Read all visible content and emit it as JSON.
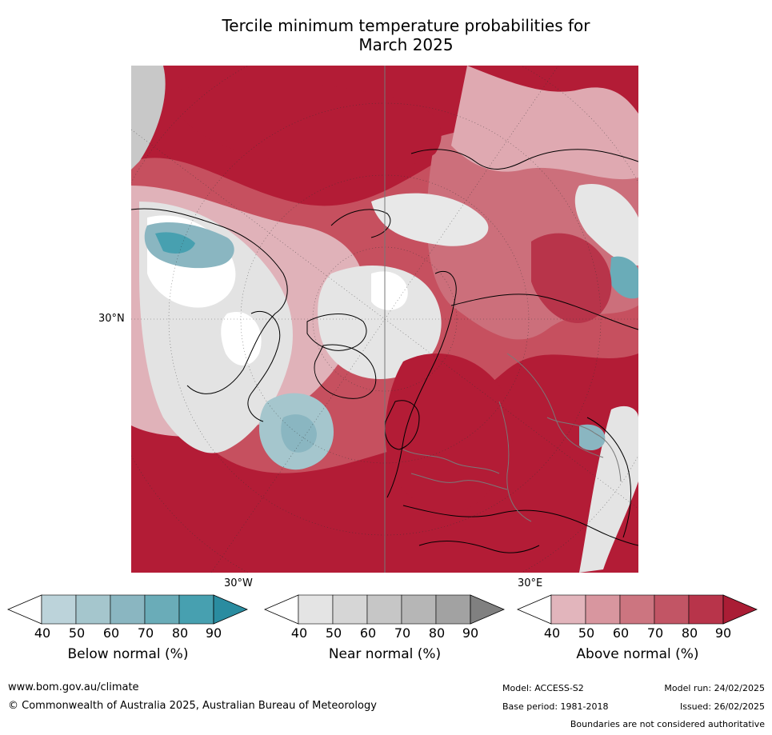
{
  "title_line1": "Tercile minimum temperature probabilities for",
  "title_line2": "March 2025",
  "map": {
    "lat_label": "30°N",
    "lon_label_left": "30°W",
    "lon_label_right": "30°E"
  },
  "colorbars": [
    {
      "label": "Below normal (%)",
      "ticks": [
        "40",
        "50",
        "60",
        "70",
        "80",
        "90"
      ],
      "colors": [
        "#ffffff",
        "#bcd3da",
        "#a5c6cd",
        "#8ab6c1",
        "#6aacb8",
        "#47a0b0",
        "#2a8ca0"
      ]
    },
    {
      "label": "Near normal (%)",
      "ticks": [
        "40",
        "50",
        "60",
        "70",
        "80",
        "90"
      ],
      "colors": [
        "#ffffff",
        "#e4e4e4",
        "#d6d6d6",
        "#c6c6c6",
        "#b6b6b6",
        "#a2a2a2",
        "#808080"
      ]
    },
    {
      "label": "Above normal (%)",
      "ticks": [
        "40",
        "50",
        "60",
        "70",
        "80",
        "90"
      ],
      "colors": [
        "#ffffff",
        "#e2b5bc",
        "#d8969f",
        "#cc7580",
        "#c25565",
        "#b8344a",
        "#aa1d35"
      ]
    }
  ],
  "footer": {
    "url": "www.bom.gov.au/climate",
    "copyright": "© Commonwealth of Australia 2025, Australian Bureau of Meteorology",
    "model": "Model: ACCESS-S2",
    "model_run": "Model run: 24/02/2025",
    "base_period": "Base period: 1981-2018",
    "issued": "Issued: 26/02/2025",
    "disclaimer": "Boundaries are not considered authoritative"
  }
}
